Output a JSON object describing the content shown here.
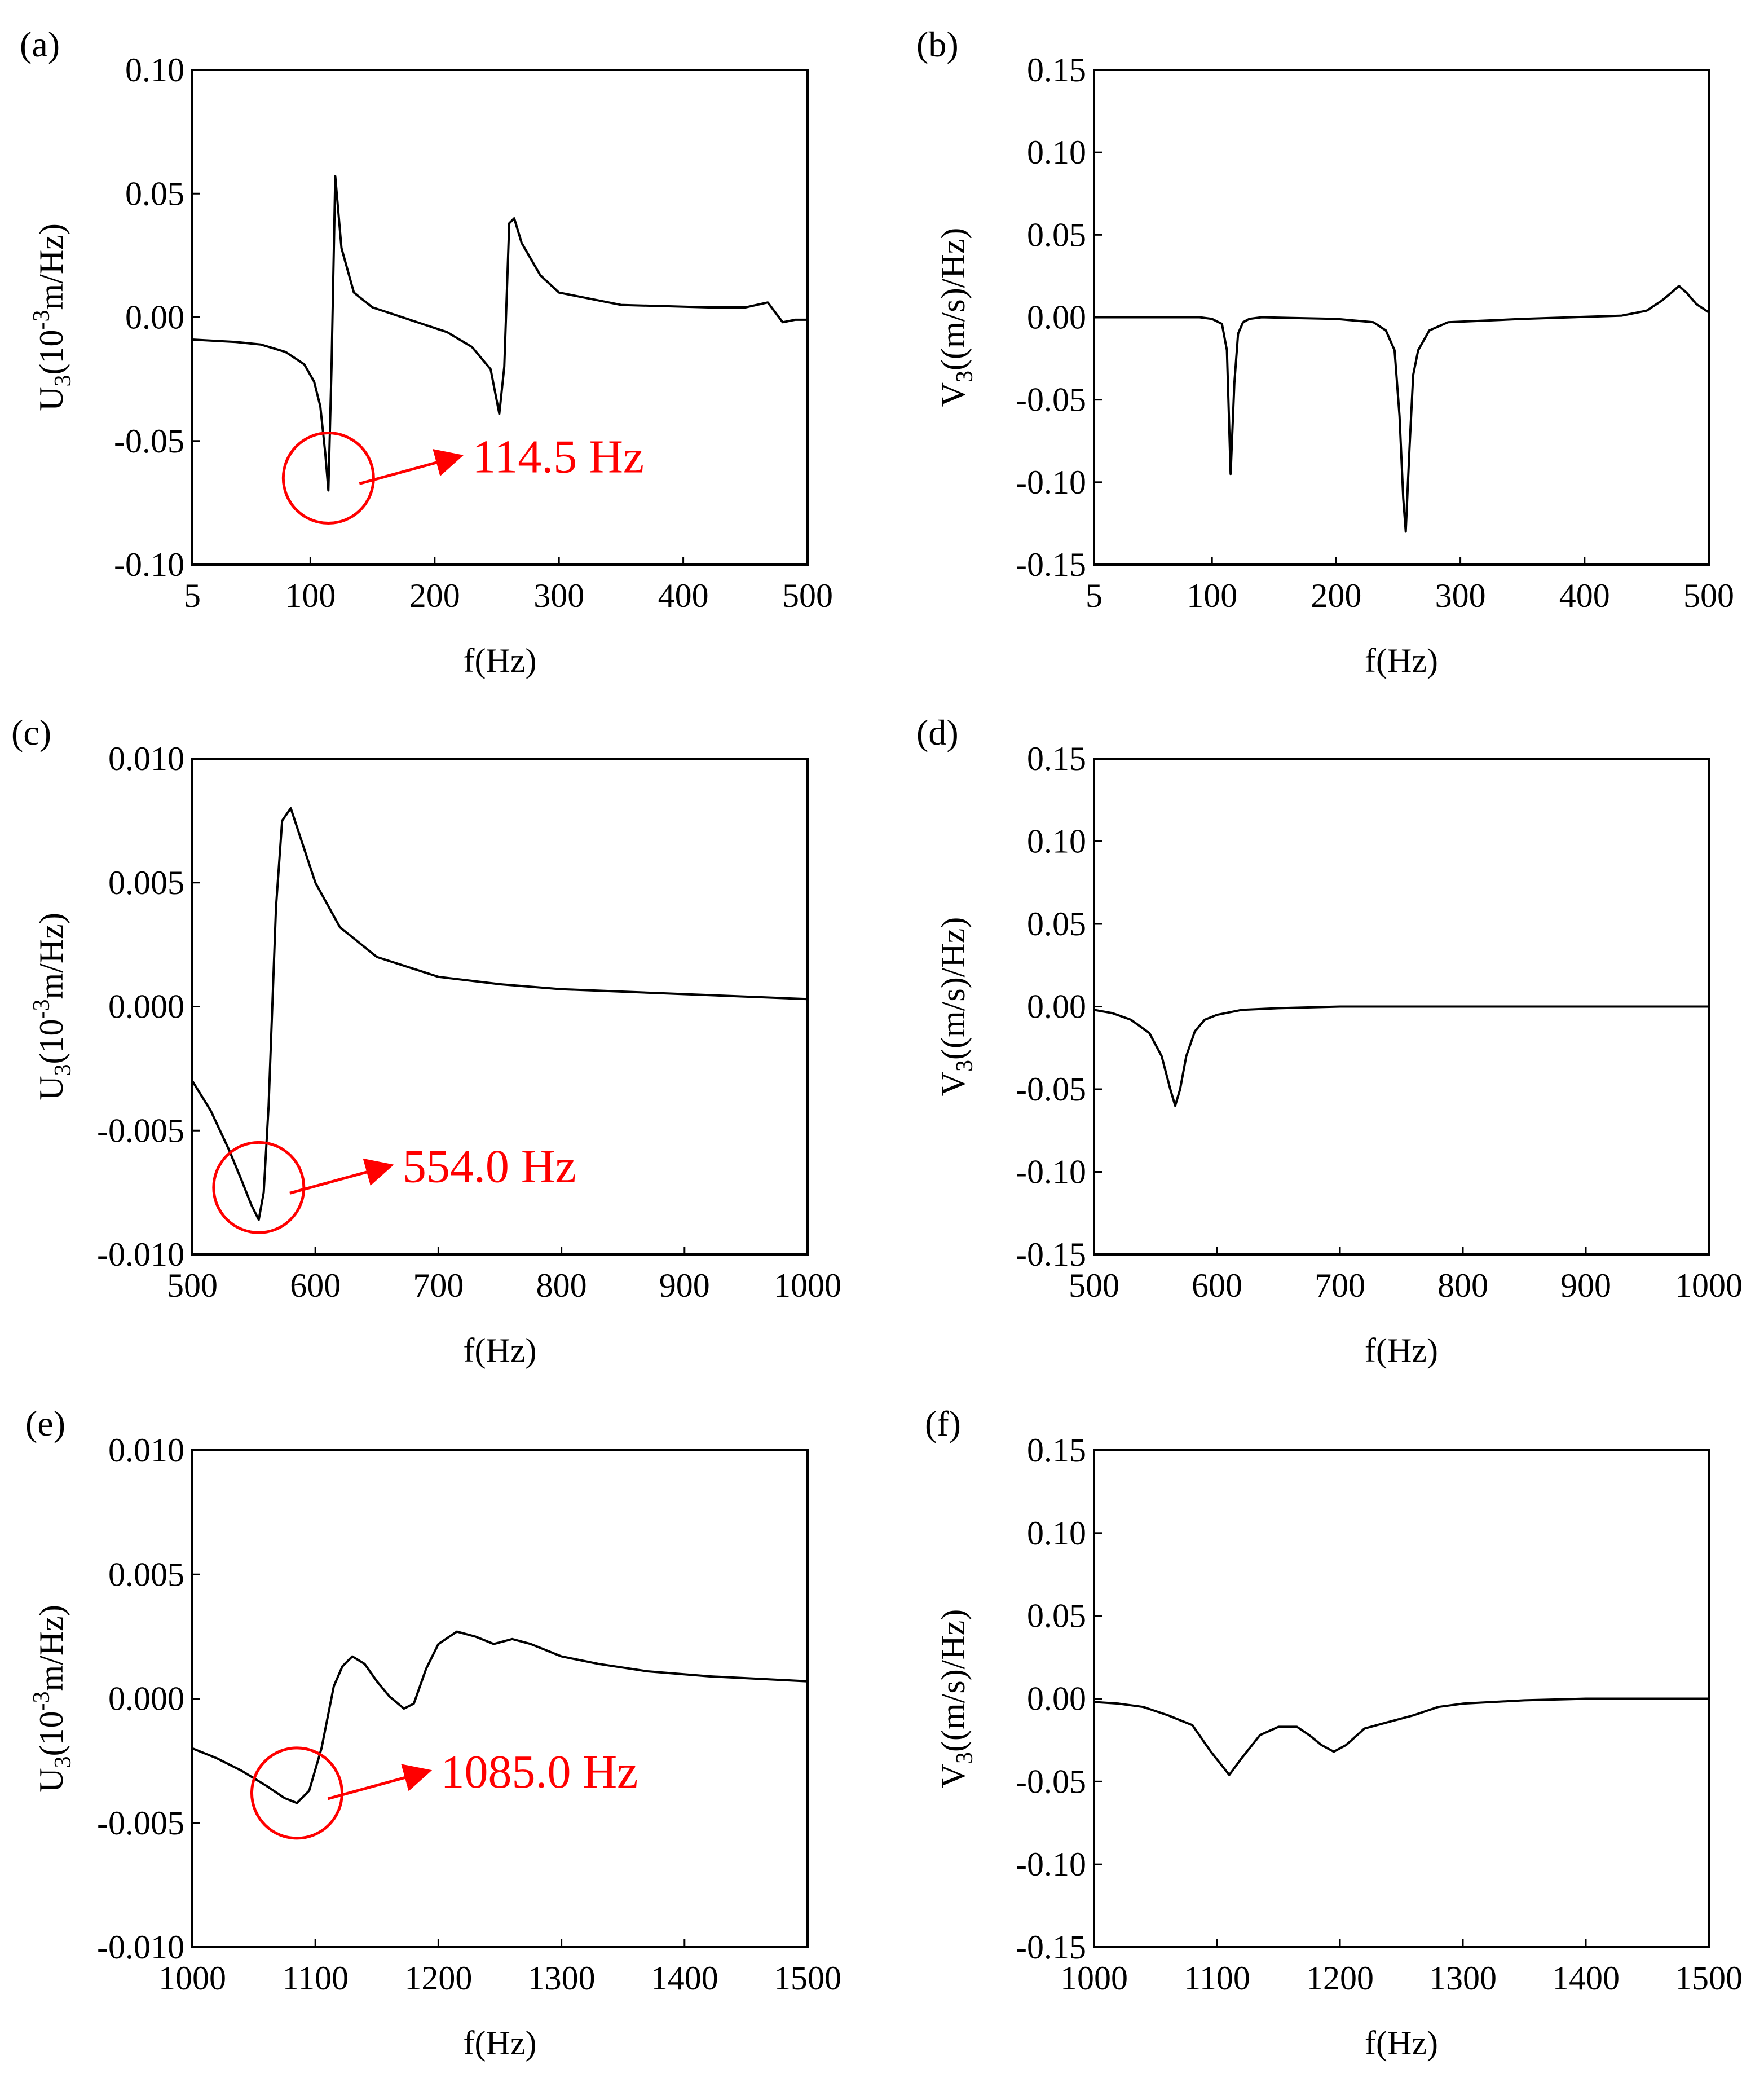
{
  "chart_data": [
    {
      "id": "a",
      "panel_label": "(a)",
      "type": "line",
      "xlabel": "f(Hz)",
      "ylabel": "U3(10-3m/Hz)",
      "xlim": [
        5,
        500
      ],
      "ylim": [
        -0.1,
        0.1
      ],
      "xticks": [
        5,
        100,
        200,
        300,
        400,
        500
      ],
      "yticks": [
        -0.1,
        -0.05,
        0.0,
        0.05,
        0.1
      ],
      "xtick_labels": [
        "5",
        "100",
        "200",
        "300",
        "400",
        "500"
      ],
      "ytick_labels": [
        "-0.10",
        "-0.05",
        "0.00",
        "0.05",
        "0.10"
      ],
      "series": [
        {
          "name": "U3",
          "x": [
            5,
            40,
            60,
            80,
            95,
            103,
            108,
            112,
            114.5,
            117,
            120,
            125,
            135,
            150,
            180,
            210,
            230,
            245,
            252,
            256,
            260,
            264,
            270,
            285,
            300,
            350,
            420,
            450,
            468,
            480,
            490,
            500
          ],
          "y": [
            -0.009,
            -0.01,
            -0.011,
            -0.014,
            -0.019,
            -0.026,
            -0.036,
            -0.055,
            -0.07,
            -0.02,
            0.057,
            0.028,
            0.01,
            0.004,
            -0.001,
            -0.006,
            -0.012,
            -0.021,
            -0.039,
            -0.02,
            0.038,
            0.04,
            0.03,
            0.017,
            0.01,
            0.005,
            0.004,
            0.004,
            0.006,
            -0.002,
            -0.001,
            -0.001
          ]
        }
      ],
      "annotation": {
        "text": "114.5 Hz",
        "x": 114.5,
        "y": -0.065
      }
    },
    {
      "id": "b",
      "panel_label": "(b)",
      "type": "line",
      "xlabel": "f(Hz)",
      "ylabel": "V3((m/s)/Hz)",
      "xlim": [
        5,
        500
      ],
      "ylim": [
        -0.15,
        0.15
      ],
      "xticks": [
        5,
        100,
        200,
        300,
        400,
        500
      ],
      "yticks": [
        -0.15,
        -0.1,
        -0.05,
        0.0,
        0.05,
        0.1,
        0.15
      ],
      "xtick_labels": [
        "5",
        "100",
        "200",
        "300",
        "400",
        "500"
      ],
      "ytick_labels": [
        "-0.15",
        "-0.10",
        "-0.05",
        "0.00",
        "0.05",
        "0.10",
        "0.15"
      ],
      "series": [
        {
          "name": "V3",
          "x": [
            5,
            90,
            100,
            108,
            112,
            115,
            118,
            121,
            125,
            130,
            140,
            200,
            230,
            240,
            247,
            251,
            254,
            256,
            259,
            262,
            266,
            275,
            290,
            350,
            430,
            450,
            462,
            470,
            476,
            482,
            490,
            500
          ],
          "y": [
            0.0,
            0.0,
            -0.001,
            -0.004,
            -0.02,
            -0.095,
            -0.04,
            -0.01,
            -0.003,
            -0.001,
            0.0,
            -0.001,
            -0.003,
            -0.008,
            -0.02,
            -0.06,
            -0.11,
            -0.13,
            -0.08,
            -0.035,
            -0.02,
            -0.008,
            -0.003,
            -0.001,
            0.001,
            0.004,
            0.01,
            0.015,
            0.019,
            0.015,
            0.008,
            0.003
          ]
        }
      ]
    },
    {
      "id": "c",
      "panel_label": "(c)",
      "type": "line",
      "xlabel": "f(Hz)",
      "ylabel": "U3(10-3m/Hz)",
      "xlim": [
        500,
        1000
      ],
      "ylim": [
        -0.01,
        0.01
      ],
      "xticks": [
        500,
        600,
        700,
        800,
        900,
        1000
      ],
      "yticks": [
        -0.01,
        -0.005,
        0.0,
        0.005,
        0.01
      ],
      "xtick_labels": [
        "500",
        "600",
        "700",
        "800",
        "900",
        "1000"
      ],
      "ytick_labels": [
        "-0.010",
        "-0.005",
        "0.000",
        "0.005",
        "0.010"
      ],
      "series": [
        {
          "name": "U3",
          "x": [
            500,
            515,
            530,
            540,
            548,
            554,
            558,
            562,
            568,
            573,
            580,
            590,
            600,
            620,
            650,
            700,
            750,
            800,
            900,
            1000
          ],
          "y": [
            -0.003,
            -0.0042,
            -0.0058,
            -0.007,
            -0.008,
            -0.0086,
            -0.0075,
            -0.004,
            0.004,
            0.0075,
            0.008,
            0.0065,
            0.005,
            0.0032,
            0.002,
            0.0012,
            0.0009,
            0.0007,
            0.0005,
            0.0003
          ]
        }
      ],
      "annotation": {
        "text": "554.0 Hz",
        "x": 554,
        "y": -0.0073
      }
    },
    {
      "id": "d",
      "panel_label": "(d)",
      "type": "line",
      "xlabel": "f(Hz)",
      "ylabel": "V3((m/s)/Hz)",
      "xlim": [
        500,
        1000
      ],
      "ylim": [
        -0.15,
        0.15
      ],
      "xticks": [
        500,
        600,
        700,
        800,
        900,
        1000
      ],
      "yticks": [
        -0.15,
        -0.1,
        -0.05,
        0.0,
        0.05,
        0.1,
        0.15
      ],
      "xtick_labels": [
        "500",
        "600",
        "700",
        "800",
        "900",
        "1000"
      ],
      "ytick_labels": [
        "-0.15",
        "-0.10",
        "-0.05",
        "0.00",
        "0.05",
        "0.10",
        "0.15"
      ],
      "series": [
        {
          "name": "V3",
          "x": [
            500,
            515,
            530,
            545,
            555,
            562,
            566,
            570,
            575,
            582,
            590,
            600,
            620,
            650,
            700,
            800,
            1000
          ],
          "y": [
            -0.002,
            -0.004,
            -0.008,
            -0.016,
            -0.03,
            -0.05,
            -0.06,
            -0.05,
            -0.03,
            -0.015,
            -0.008,
            -0.005,
            -0.002,
            -0.001,
            0.0,
            0.0,
            0.0
          ]
        }
      ]
    },
    {
      "id": "e",
      "panel_label": "(e)",
      "type": "line",
      "xlabel": "f(Hz)",
      "ylabel": "U3(10-3m/Hz)",
      "xlim": [
        1000,
        1500
      ],
      "ylim": [
        -0.01,
        0.01
      ],
      "xticks": [
        1000,
        1100,
        1200,
        1300,
        1400,
        1500
      ],
      "yticks": [
        -0.01,
        -0.005,
        0.0,
        0.005,
        0.01
      ],
      "xtick_labels": [
        "1000",
        "1100",
        "1200",
        "1300",
        "1400",
        "1500"
      ],
      "ytick_labels": [
        "-0.010",
        "-0.005",
        "0.000",
        "0.005",
        "0.010"
      ],
      "series": [
        {
          "name": "U3",
          "x": [
            1000,
            1020,
            1040,
            1060,
            1075,
            1085,
            1095,
            1105,
            1115,
            1122,
            1130,
            1140,
            1150,
            1160,
            1172,
            1180,
            1190,
            1200,
            1215,
            1230,
            1245,
            1260,
            1275,
            1300,
            1330,
            1370,
            1420,
            1460,
            1500
          ],
          "y": [
            -0.002,
            -0.0024,
            -0.0029,
            -0.0035,
            -0.004,
            -0.0042,
            -0.0037,
            -0.002,
            0.0005,
            0.0013,
            0.0017,
            0.0014,
            0.0007,
            0.0001,
            -0.0004,
            -0.0002,
            0.0012,
            0.0022,
            0.0027,
            0.0025,
            0.0022,
            0.0024,
            0.0022,
            0.0017,
            0.0014,
            0.0011,
            0.0009,
            0.0008,
            0.0007
          ]
        }
      ],
      "annotation": {
        "text": "1085.0 Hz",
        "x": 1085,
        "y": -0.0038
      }
    },
    {
      "id": "f",
      "panel_label": "(f)",
      "type": "line",
      "xlabel": "f(Hz)",
      "ylabel": "V3((m/s)/Hz)",
      "xlim": [
        1000,
        1500
      ],
      "ylim": [
        -0.15,
        0.15
      ],
      "xticks": [
        1000,
        1100,
        1200,
        1300,
        1400,
        1500
      ],
      "yticks": [
        -0.15,
        -0.1,
        -0.05,
        0.0,
        0.05,
        0.1,
        0.15
      ],
      "xtick_labels": [
        "1000",
        "1100",
        "1200",
        "1300",
        "1400",
        "1500"
      ],
      "ytick_labels": [
        "-0.15",
        "-0.10",
        "-0.05",
        "0.00",
        "0.05",
        "0.10",
        "0.15"
      ],
      "series": [
        {
          "name": "V3",
          "x": [
            1000,
            1020,
            1040,
            1060,
            1080,
            1095,
            1110,
            1120,
            1135,
            1150,
            1165,
            1175,
            1185,
            1195,
            1205,
            1220,
            1240,
            1260,
            1280,
            1300,
            1350,
            1400,
            1500
          ],
          "y": [
            -0.002,
            -0.003,
            -0.005,
            -0.01,
            -0.016,
            -0.032,
            -0.046,
            -0.036,
            -0.022,
            -0.017,
            -0.017,
            -0.022,
            -0.028,
            -0.032,
            -0.028,
            -0.018,
            -0.014,
            -0.01,
            -0.005,
            -0.003,
            -0.001,
            0.0,
            0.0
          ]
        }
      ]
    }
  ]
}
